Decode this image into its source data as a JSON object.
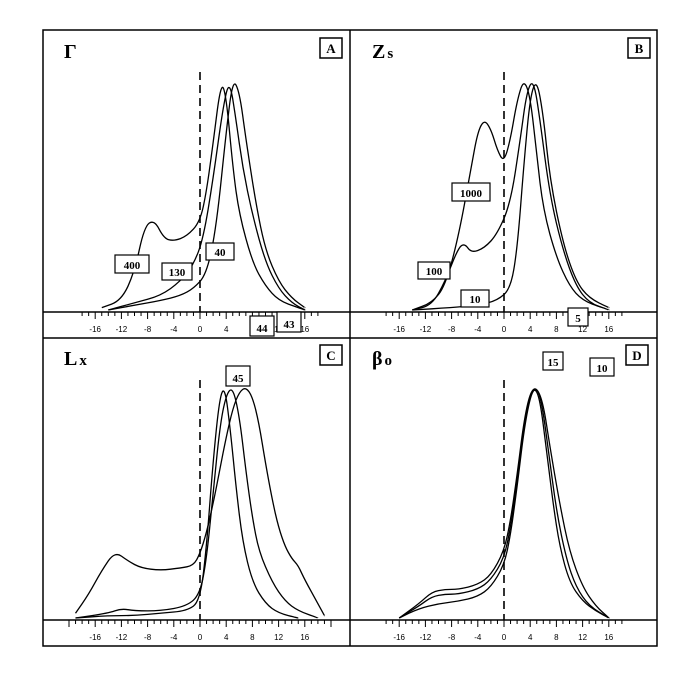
{
  "chart_data": [
    {
      "type": "line",
      "panel": "A",
      "title": "Γ",
      "xlim": [
        -18,
        18
      ],
      "x_ticks": [
        -16,
        -12,
        -8,
        -4,
        0,
        4,
        8,
        12,
        16
      ],
      "ylim": [
        0,
        1
      ],
      "series": [
        {
          "name": "400",
          "values": [
            [
              -15,
              0.01
            ],
            [
              -12,
              0.04
            ],
            [
              -10,
              0.16
            ],
            [
              -8.5,
              0.35
            ],
            [
              -7,
              0.38
            ],
            [
              -5.5,
              0.3
            ],
            [
              -4,
              0.29
            ],
            [
              -2,
              0.31
            ],
            [
              0,
              0.37
            ],
            [
              1,
              0.5
            ],
            [
              2,
              0.7
            ],
            [
              3.2,
              0.96
            ],
            [
              4,
              0.9
            ],
            [
              5,
              0.6
            ],
            [
              6,
              0.4
            ],
            [
              8,
              0.2
            ],
            [
              10,
              0.1
            ],
            [
              12,
              0.04
            ],
            [
              15,
              0.01
            ],
            [
              16,
              0.0
            ]
          ]
        },
        {
          "name": "130",
          "values": [
            [
              -14,
              0.0
            ],
            [
              -10,
              0.03
            ],
            [
              -6,
              0.06
            ],
            [
              -3,
              0.12
            ],
            [
              -1,
              0.19
            ],
            [
              0.5,
              0.3
            ],
            [
              2,
              0.55
            ],
            [
              3.5,
              0.85
            ],
            [
              4.5,
              0.97
            ],
            [
              5.5,
              0.8
            ],
            [
              6.5,
              0.6
            ],
            [
              8,
              0.4
            ],
            [
              10,
              0.2
            ],
            [
              12,
              0.09
            ],
            [
              14,
              0.03
            ],
            [
              16,
              0.0
            ]
          ]
        },
        {
          "name": "40",
          "values": [
            [
              -14,
              0.0
            ],
            [
              -10,
              0.02
            ],
            [
              -6,
              0.04
            ],
            [
              -3,
              0.06
            ],
            [
              -1,
              0.09
            ],
            [
              1,
              0.15
            ],
            [
              2.5,
              0.35
            ],
            [
              4,
              0.75
            ],
            [
              5,
              0.97
            ],
            [
              6,
              0.92
            ],
            [
              7,
              0.72
            ],
            [
              8.5,
              0.45
            ],
            [
              10,
              0.25
            ],
            [
              12,
              0.12
            ],
            [
              14,
              0.05
            ],
            [
              16,
              0.01
            ]
          ]
        }
      ],
      "labels": [
        "400",
        "130",
        "40"
      ],
      "panel_letter": "A"
    },
    {
      "type": "line",
      "panel": "B",
      "title": "Zs",
      "xlim": [
        -18,
        18
      ],
      "x_ticks": [
        -16,
        -12,
        -8,
        -4,
        0,
        4,
        8,
        12,
        16
      ],
      "ylim": [
        0,
        1
      ],
      "series": [
        {
          "name": "1000",
          "values": [
            [
              -14,
              0.0
            ],
            [
              -11,
              0.03
            ],
            [
              -9,
              0.1
            ],
            [
              -7,
              0.3
            ],
            [
              -5,
              0.6
            ],
            [
              -4,
              0.75
            ],
            [
              -3,
              0.8
            ],
            [
              -2,
              0.76
            ],
            [
              -1,
              0.67
            ],
            [
              0,
              0.62
            ],
            [
              1,
              0.72
            ],
            [
              2,
              0.88
            ],
            [
              3,
              0.97
            ],
            [
              4,
              0.9
            ],
            [
              5,
              0.65
            ],
            [
              6,
              0.42
            ],
            [
              8,
              0.22
            ],
            [
              10,
              0.1
            ],
            [
              12,
              0.04
            ],
            [
              15,
              0.01
            ]
          ]
        },
        {
          "name": "100",
          "values": [
            [
              -14,
              0.0
            ],
            [
              -11,
              0.02
            ],
            [
              -9,
              0.12
            ],
            [
              -7,
              0.26
            ],
            [
              -6,
              0.28
            ],
            [
              -5,
              0.24
            ],
            [
              -3,
              0.26
            ],
            [
              -1,
              0.32
            ],
            [
              1,
              0.45
            ],
            [
              2.5,
              0.72
            ],
            [
              3.5,
              0.92
            ],
            [
              4.5,
              0.97
            ],
            [
              5.5,
              0.8
            ],
            [
              7,
              0.48
            ],
            [
              9,
              0.25
            ],
            [
              11,
              0.1
            ],
            [
              13,
              0.03
            ],
            [
              16,
              0.0
            ]
          ]
        },
        {
          "name": "10",
          "values": [
            [
              -14,
              0.0
            ],
            [
              -8,
              0.01
            ],
            [
              -4,
              0.02
            ],
            [
              -1,
              0.04
            ],
            [
              1,
              0.09
            ],
            [
              2,
              0.25
            ],
            [
              3,
              0.6
            ],
            [
              4,
              0.9
            ],
            [
              5,
              0.97
            ],
            [
              6,
              0.82
            ],
            [
              7,
              0.55
            ],
            [
              9,
              0.28
            ],
            [
              11,
              0.12
            ],
            [
              13,
              0.05
            ],
            [
              16,
              0.01
            ]
          ]
        }
      ],
      "labels": [
        "1000",
        "100",
        "10"
      ],
      "panel_letter": "B"
    },
    {
      "type": "line",
      "panel": "C",
      "title": "Lx",
      "xlim": [
        -20,
        20
      ],
      "x_ticks": [
        -16,
        -12,
        -8,
        -4,
        0,
        4,
        8,
        12,
        16
      ],
      "ylim": [
        0,
        1
      ],
      "series": [
        {
          "name": "43",
          "values": [
            [
              -19,
              0.02
            ],
            [
              -17,
              0.1
            ],
            [
              -15,
              0.2
            ],
            [
              -13,
              0.28
            ],
            [
              -11,
              0.24
            ],
            [
              -9,
              0.21
            ],
            [
              -6,
              0.2
            ],
            [
              -3,
              0.21
            ],
            [
              -1,
              0.22
            ],
            [
              0,
              0.27
            ],
            [
              1,
              0.36
            ],
            [
              2,
              0.48
            ],
            [
              3,
              0.62
            ],
            [
              4,
              0.76
            ],
            [
              5,
              0.88
            ],
            [
              6,
              0.95
            ],
            [
              7,
              0.97
            ],
            [
              8,
              0.93
            ],
            [
              9,
              0.82
            ],
            [
              10,
              0.65
            ],
            [
              11,
              0.5
            ],
            [
              12,
              0.38
            ],
            [
              13,
              0.3
            ],
            [
              14,
              0.25
            ],
            [
              15,
              0.22
            ],
            [
              16,
              0.16
            ],
            [
              18,
              0.06
            ],
            [
              19,
              0.01
            ]
          ]
        },
        {
          "name": "44",
          "values": [
            [
              -19,
              0.0
            ],
            [
              -14,
              0.02
            ],
            [
              -12,
              0.04
            ],
            [
              -10,
              0.03
            ],
            [
              -6,
              0.03
            ],
            [
              -2,
              0.05
            ],
            [
              0,
              0.1
            ],
            [
              1,
              0.25
            ],
            [
              2,
              0.52
            ],
            [
              3,
              0.8
            ],
            [
              4,
              0.94
            ],
            [
              5,
              0.97
            ],
            [
              6,
              0.85
            ],
            [
              7,
              0.62
            ],
            [
              8,
              0.42
            ],
            [
              9,
              0.28
            ],
            [
              11,
              0.15
            ],
            [
              13,
              0.07
            ],
            [
              15,
              0.03
            ],
            [
              18,
              0.0
            ]
          ]
        },
        {
          "name": "45",
          "values": [
            [
              -19,
              0.0
            ],
            [
              -14,
              0.01
            ],
            [
              -10,
              0.01
            ],
            [
              -6,
              0.02
            ],
            [
              -2,
              0.03
            ],
            [
              0,
              0.07
            ],
            [
              1,
              0.3
            ],
            [
              2,
              0.66
            ],
            [
              3,
              0.93
            ],
            [
              3.8,
              0.97
            ],
            [
              4.6,
              0.8
            ],
            [
              5.5,
              0.55
            ],
            [
              6.5,
              0.32
            ],
            [
              8,
              0.15
            ],
            [
              10,
              0.06
            ],
            [
              12,
              0.02
            ],
            [
              15,
              0.0
            ]
          ]
        }
      ],
      "labels": [
        "45",
        "44",
        "43"
      ],
      "panel_letter": "C"
    },
    {
      "type": "line",
      "panel": "D",
      "title": "βo",
      "xlim": [
        -18,
        18
      ],
      "x_ticks": [
        -16,
        -12,
        -8,
        -4,
        0,
        4,
        8,
        12,
        16
      ],
      "ylim": [
        0,
        1
      ],
      "series": [
        {
          "name": "5",
          "values": [
            [
              -16,
              0.0
            ],
            [
              -13,
              0.04
            ],
            [
              -10,
              0.06
            ],
            [
              -7,
              0.07
            ],
            [
              -4,
              0.09
            ],
            [
              -2,
              0.13
            ],
            [
              0,
              0.22
            ],
            [
              1,
              0.35
            ],
            [
              2,
              0.55
            ],
            [
              3,
              0.78
            ],
            [
              4,
              0.93
            ],
            [
              4.8,
              0.97
            ],
            [
              5.6,
              0.9
            ],
            [
              6.5,
              0.7
            ],
            [
              7.5,
              0.48
            ],
            [
              8.5,
              0.3
            ],
            [
              10,
              0.15
            ],
            [
              12,
              0.07
            ],
            [
              14,
              0.03
            ],
            [
              16,
              0.0
            ]
          ]
        },
        {
          "name": "15",
          "values": [
            [
              -16,
              0.0
            ],
            [
              -13,
              0.05
            ],
            [
              -11,
              0.09
            ],
            [
              -9,
              0.1
            ],
            [
              -7,
              0.1
            ],
            [
              -4,
              0.12
            ],
            [
              -2,
              0.16
            ],
            [
              0,
              0.25
            ],
            [
              1,
              0.38
            ],
            [
              2,
              0.58
            ],
            [
              3,
              0.8
            ],
            [
              4,
              0.94
            ],
            [
              5,
              0.97
            ],
            [
              5.8,
              0.9
            ],
            [
              6.8,
              0.7
            ],
            [
              8,
              0.45
            ],
            [
              9.5,
              0.25
            ],
            [
              11,
              0.13
            ],
            [
              13,
              0.05
            ],
            [
              16,
              0.0
            ]
          ]
        },
        {
          "name": "10",
          "values": [
            [
              -16,
              0.0
            ],
            [
              -13,
              0.06
            ],
            [
              -11,
              0.11
            ],
            [
              -9,
              0.12
            ],
            [
              -7,
              0.12
            ],
            [
              -4,
              0.14
            ],
            [
              -2,
              0.18
            ],
            [
              0,
              0.28
            ],
            [
              1,
              0.41
            ],
            [
              2,
              0.6
            ],
            [
              3,
              0.82
            ],
            [
              4,
              0.95
            ],
            [
              5,
              0.97
            ],
            [
              6,
              0.9
            ],
            [
              7,
              0.72
            ],
            [
              8.5,
              0.48
            ],
            [
              10,
              0.28
            ],
            [
              12,
              0.13
            ],
            [
              14,
              0.05
            ],
            [
              16,
              0.0
            ]
          ]
        }
      ],
      "labels": [
        "5",
        "15",
        "10"
      ],
      "panel_letter": "D"
    }
  ]
}
